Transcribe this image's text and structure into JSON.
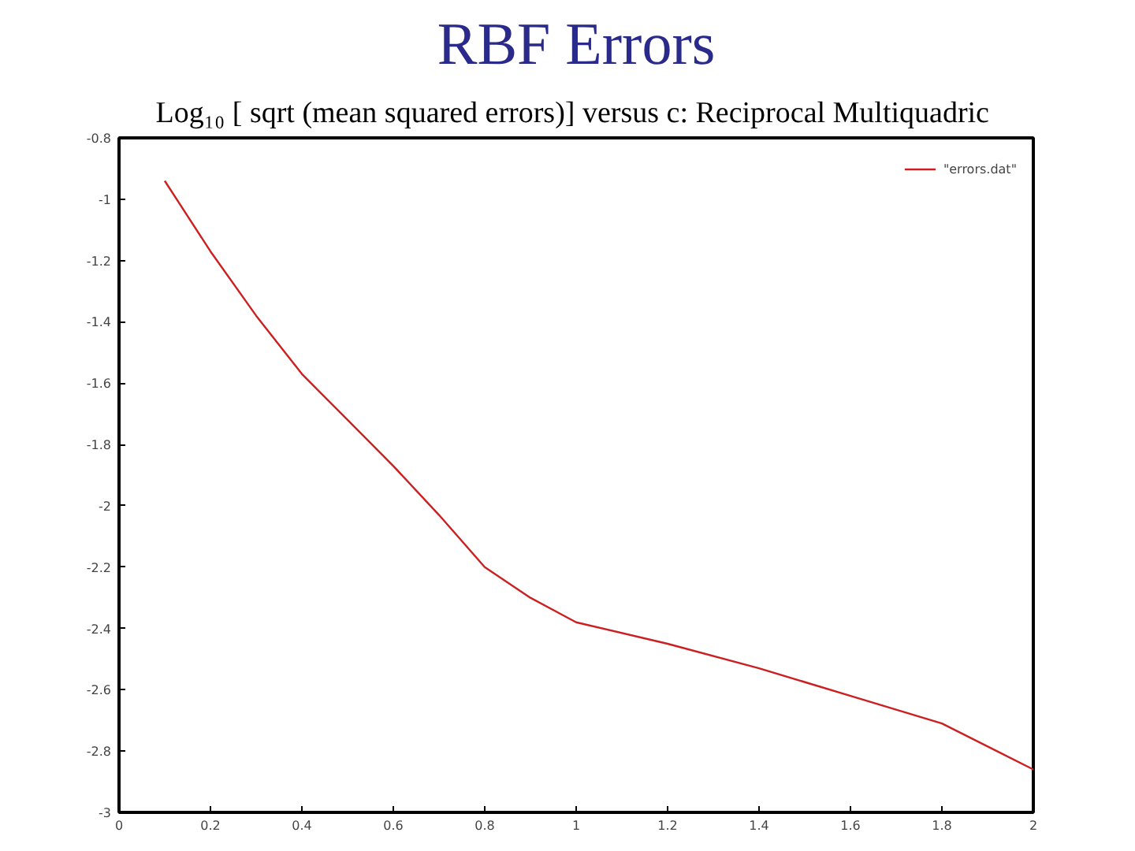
{
  "chart_data": {
    "type": "line",
    "title": "RBF Errors",
    "subtitle": "Log₁₀ [ sqrt (mean squared errors)] versus c:  Reciprocal Multiquadric",
    "x": [
      0.1,
      0.2,
      0.3,
      0.4,
      0.5,
      0.6,
      0.7,
      0.8,
      0.9,
      1.0,
      1.2,
      1.4,
      1.6,
      1.8,
      2.0
    ],
    "series": [
      {
        "name": "\"errors.dat\"",
        "color": "#cc2020",
        "values": [
          -0.94,
          -1.17,
          -1.38,
          -1.57,
          -1.72,
          -1.87,
          -2.03,
          -2.2,
          -2.3,
          -2.38,
          -2.45,
          -2.53,
          -2.62,
          -2.71,
          -2.86
        ]
      }
    ],
    "xlim": [
      0,
      2
    ],
    "xticks": [
      0,
      0.2,
      0.4,
      0.6,
      0.8,
      1,
      1.2,
      1.4,
      1.6,
      1.8,
      2
    ],
    "ylim": [
      -3,
      -0.8
    ],
    "yticks": [
      -3,
      -2.8,
      -2.6,
      -2.4,
      -2.2,
      -2,
      -1.8,
      -1.6,
      -1.4,
      -1.2,
      -1,
      -0.8
    ],
    "grid": false,
    "legend": "top right",
    "marker": "none",
    "line_style": "solid"
  }
}
